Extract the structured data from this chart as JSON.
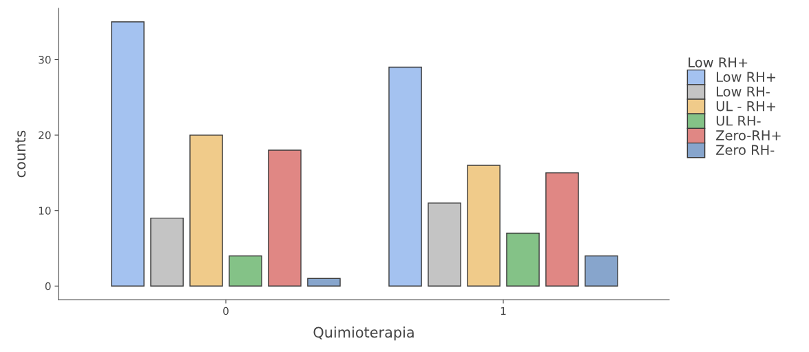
{
  "chart_data": {
    "type": "bar",
    "xlabel": "Quimioterapia",
    "ylabel": "counts",
    "legend_title": "Low RH+",
    "categories": [
      "0",
      "1"
    ],
    "series": [
      {
        "name": "Low RH+",
        "color": "#a4c2f0",
        "values": [
          35,
          29
        ]
      },
      {
        "name": "Low RH-",
        "color": "#c4c4c4",
        "values": [
          9,
          11
        ]
      },
      {
        "name": "UL - RH+",
        "color": "#f0cb8a",
        "values": [
          20,
          16
        ]
      },
      {
        "name": "UL RH-",
        "color": "#84c287",
        "values": [
          4,
          7
        ]
      },
      {
        "name": "Zero-RH+",
        "color": "#e08784",
        "values": [
          18,
          15
        ]
      },
      {
        "name": "Zero RH-",
        "color": "#87a5cc",
        "values": [
          1,
          4
        ]
      }
    ],
    "ylim": [
      -1.8,
      36.8
    ],
    "yticks": [
      0,
      10,
      20,
      30
    ],
    "grid": false,
    "legend": "right"
  }
}
